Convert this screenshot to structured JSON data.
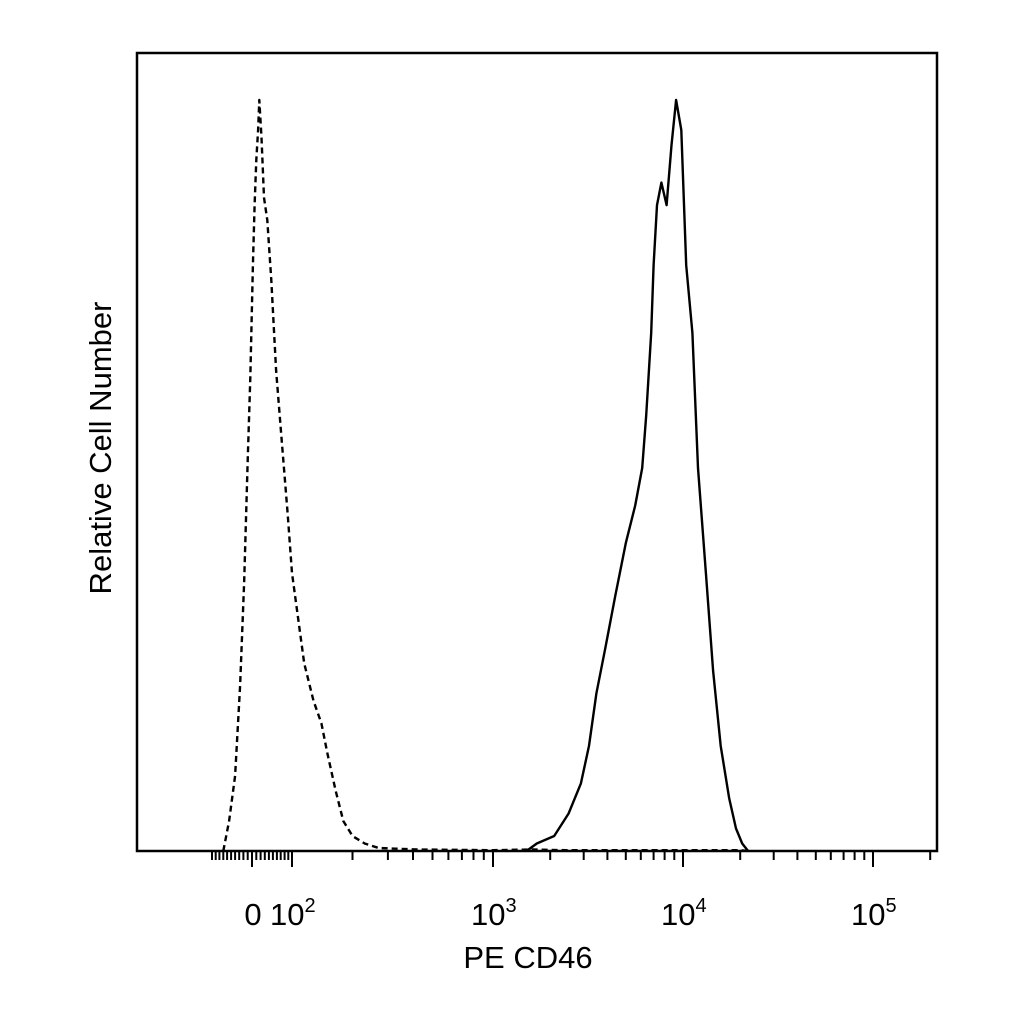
{
  "chart_data": {
    "type": "area",
    "title": "",
    "xlabel": "PE CD46",
    "ylabel": "Relative Cell Number",
    "x_scale": "biexponential (logicle)",
    "x_tick_labels": [
      {
        "base": "0",
        "exp": "",
        "value": 0
      },
      {
        "base": "10",
        "exp": "2",
        "value": 100
      },
      {
        "base": "10",
        "exp": "3",
        "value": 1000
      },
      {
        "base": "10",
        "exp": "4",
        "value": 10000
      },
      {
        "base": "10",
        "exp": "5",
        "value": 100000
      }
    ],
    "y_tick_labels": [],
    "grid": false,
    "legend": "none",
    "series": [
      {
        "style": "dashed",
        "color": "#000000",
        "points": [
          [
            -70,
            0.0
          ],
          [
            -55,
            0.04
          ],
          [
            -40,
            0.1
          ],
          [
            -28,
            0.22
          ],
          [
            -18,
            0.36
          ],
          [
            -10,
            0.52
          ],
          [
            -4,
            0.63
          ],
          [
            2,
            0.78
          ],
          [
            6,
            0.86
          ],
          [
            10,
            0.92
          ],
          [
            14,
            0.96
          ],
          [
            17,
            1.0
          ],
          [
            22,
            0.95
          ],
          [
            28,
            0.87
          ],
          [
            36,
            0.84
          ],
          [
            46,
            0.76
          ],
          [
            58,
            0.64
          ],
          [
            72,
            0.55
          ],
          [
            88,
            0.45
          ],
          [
            100,
            0.37
          ],
          [
            115,
            0.25
          ],
          [
            128,
            0.2
          ],
          [
            140,
            0.17
          ],
          [
            150,
            0.13
          ],
          [
            165,
            0.08
          ],
          [
            180,
            0.04
          ],
          [
            200,
            0.02
          ],
          [
            230,
            0.01
          ],
          [
            270,
            0.004
          ],
          [
            330,
            0.003
          ],
          [
            420,
            0.002
          ],
          [
            1000,
            0.001
          ],
          [
            1600,
            0.002
          ],
          [
            2400,
            0.001
          ],
          [
            4000,
            0.001
          ],
          [
            8000,
            0.001
          ],
          [
            20000,
            0.001
          ],
          [
            22000,
            0.0
          ]
        ]
      },
      {
        "style": "solid",
        "color": "#000000",
        "points": [
          [
            1500,
            0.0
          ],
          [
            1700,
            0.01
          ],
          [
            2100,
            0.02
          ],
          [
            2500,
            0.05
          ],
          [
            2900,
            0.09
          ],
          [
            3200,
            0.14
          ],
          [
            3500,
            0.21
          ],
          [
            3900,
            0.27
          ],
          [
            4400,
            0.34
          ],
          [
            5000,
            0.41
          ],
          [
            5600,
            0.46
          ],
          [
            6100,
            0.51
          ],
          [
            6400,
            0.58
          ],
          [
            6800,
            0.69
          ],
          [
            7000,
            0.78
          ],
          [
            7300,
            0.86
          ],
          [
            7700,
            0.89
          ],
          [
            8200,
            0.86
          ],
          [
            8700,
            0.94
          ],
          [
            9200,
            1.0
          ],
          [
            9800,
            0.96
          ],
          [
            10400,
            0.78
          ],
          [
            11200,
            0.69
          ],
          [
            12000,
            0.51
          ],
          [
            13200,
            0.37
          ],
          [
            14400,
            0.24
          ],
          [
            15800,
            0.14
          ],
          [
            17500,
            0.07
          ],
          [
            19000,
            0.03
          ],
          [
            20500,
            0.01
          ],
          [
            22000,
            0.0
          ]
        ]
      }
    ]
  }
}
